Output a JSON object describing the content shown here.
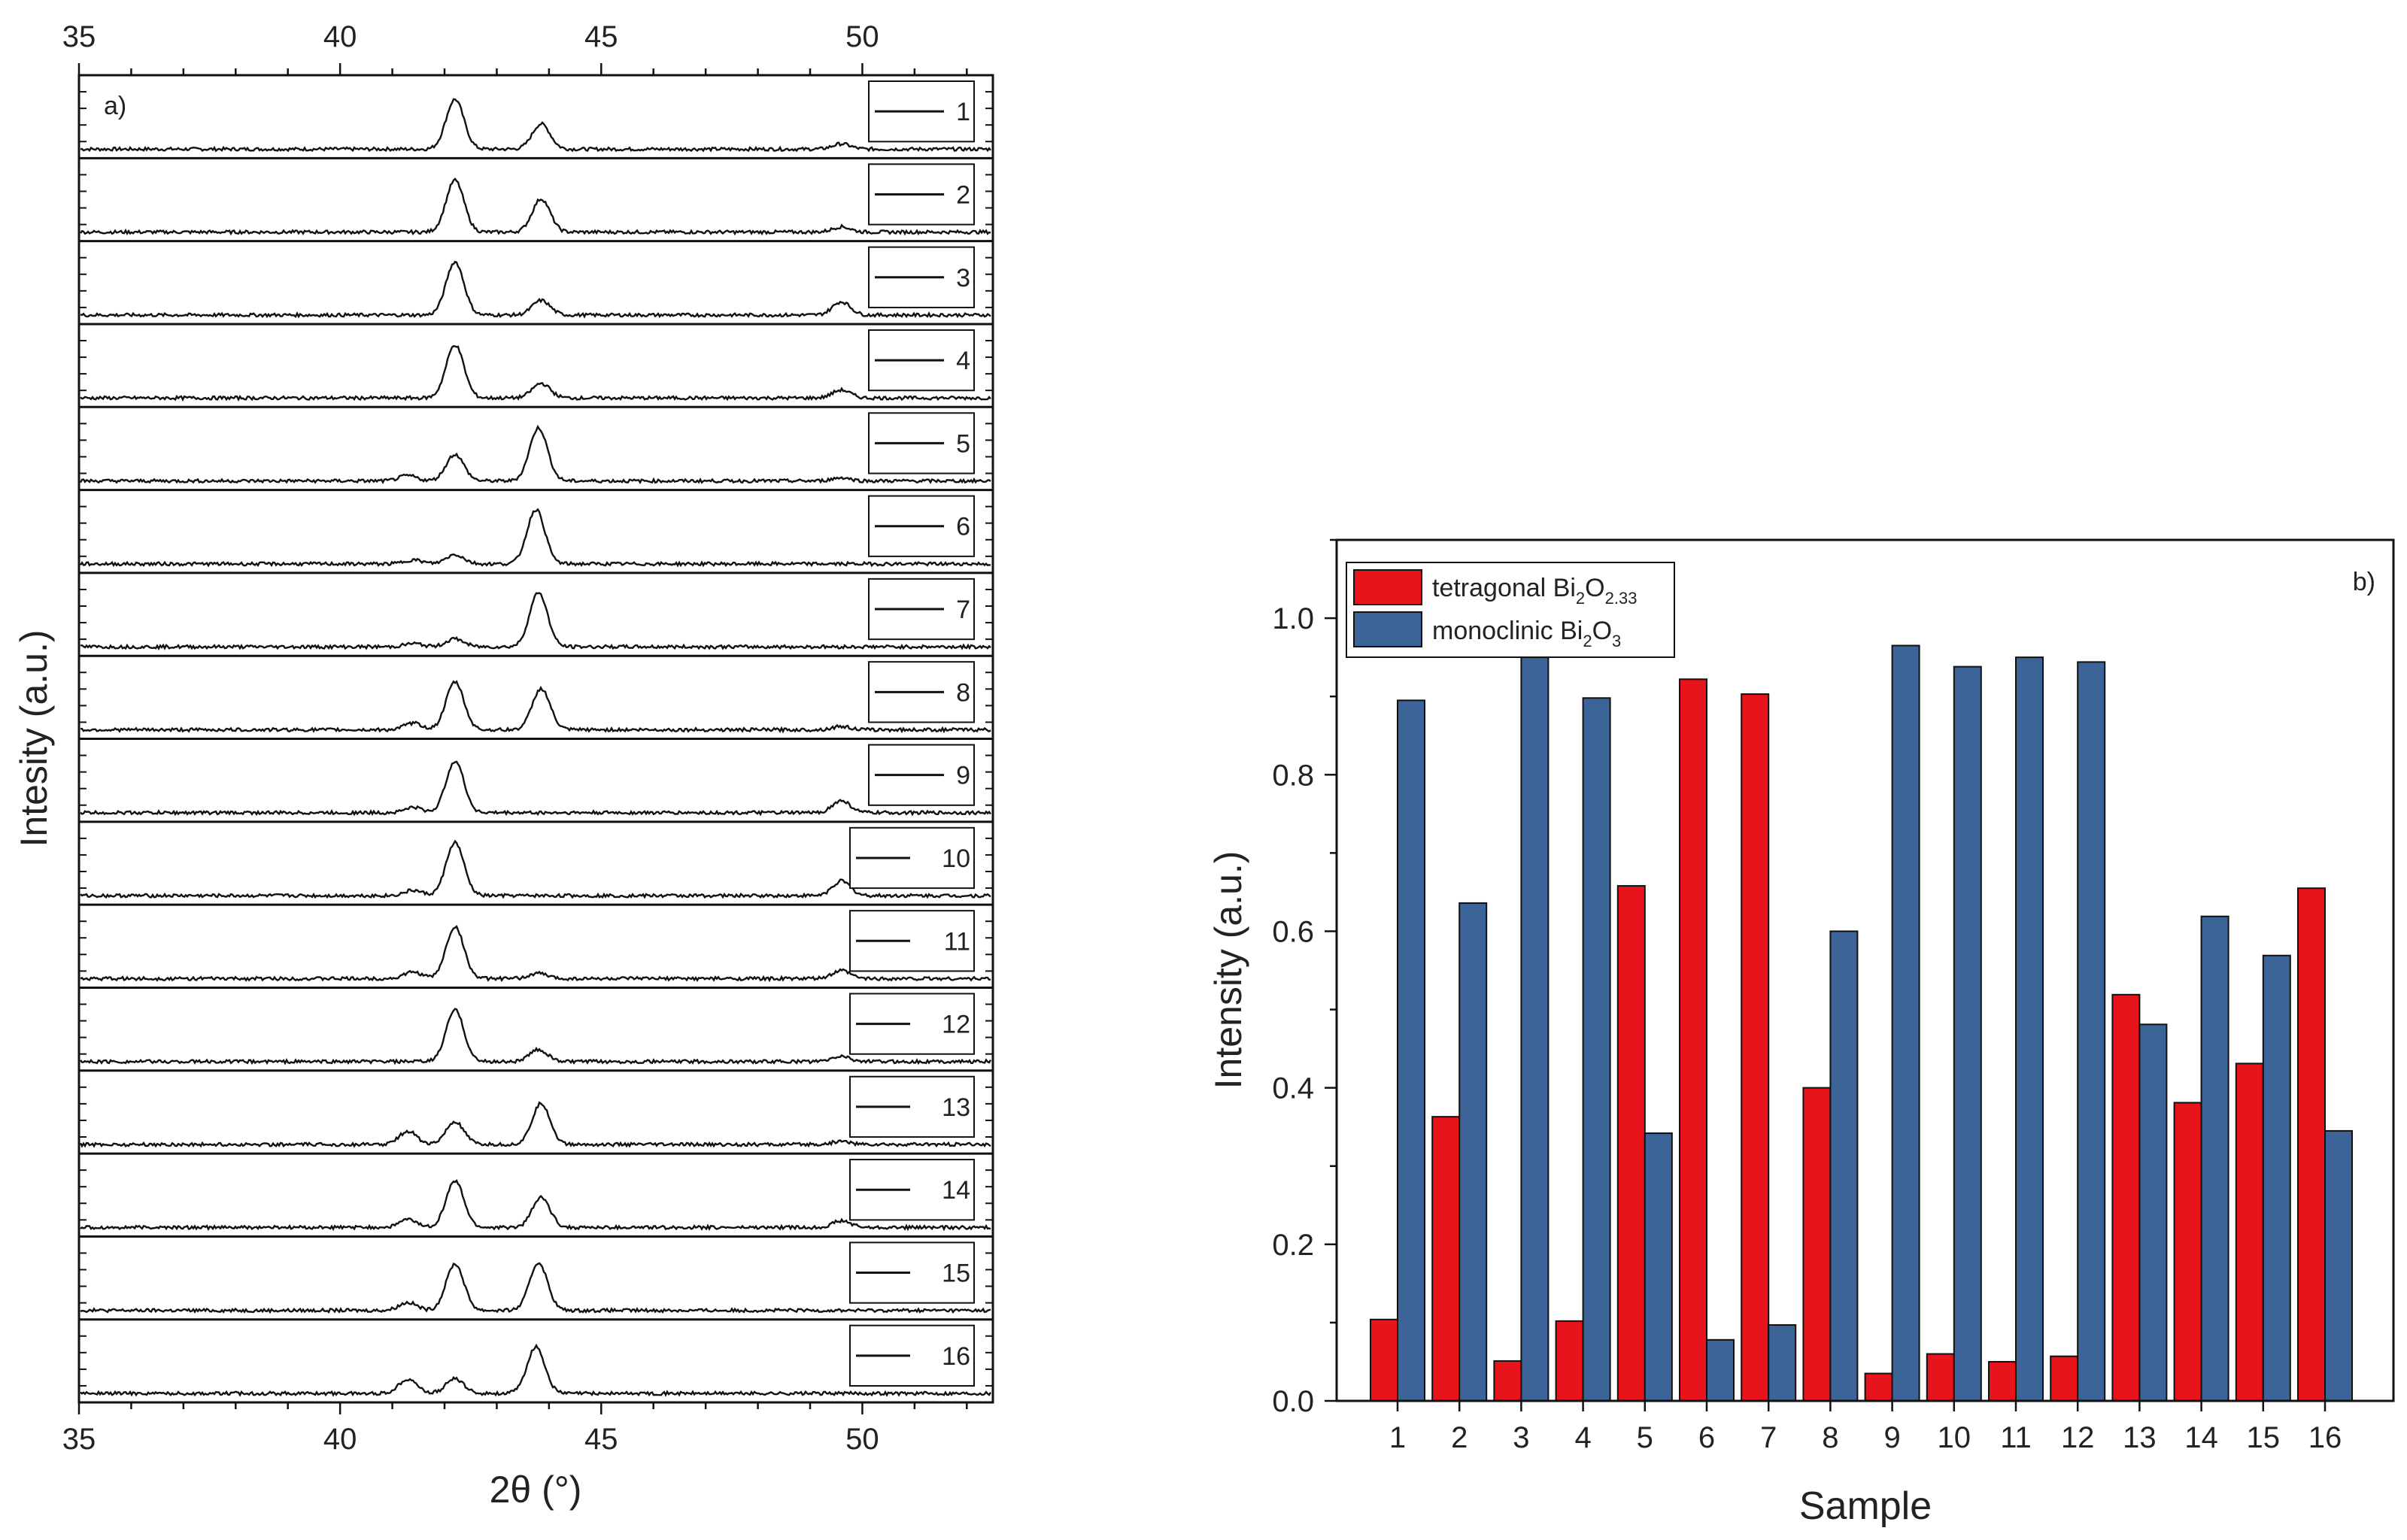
{
  "chart_data": [
    {
      "type": "line",
      "panel_label": "a)",
      "xlabel": "2θ (°)",
      "ylabel": "Intesity (a.u.)",
      "xlim": [
        35,
        52.5
      ],
      "xticks": [
        "35",
        "40",
        "45",
        "50"
      ],
      "top_xticks": [
        "35",
        "40",
        "45",
        "50"
      ],
      "y_ticks_shown": false,
      "series": [
        {
          "name": "1",
          "peaks": [
            {
              "x": 42.2,
              "h": 0.75
            },
            {
              "x": 43.85,
              "h": 0.38
            },
            {
              "x": 49.6,
              "h": 0.08
            }
          ]
        },
        {
          "name": "2",
          "peaks": [
            {
              "x": 42.2,
              "h": 0.78
            },
            {
              "x": 43.85,
              "h": 0.5
            },
            {
              "x": 49.6,
              "h": 0.08
            }
          ]
        },
        {
          "name": "3",
          "peaks": [
            {
              "x": 42.2,
              "h": 0.8
            },
            {
              "x": 43.85,
              "h": 0.22
            },
            {
              "x": 49.6,
              "h": 0.2
            }
          ]
        },
        {
          "name": "4",
          "peaks": [
            {
              "x": 42.2,
              "h": 0.8
            },
            {
              "x": 43.85,
              "h": 0.22
            },
            {
              "x": 49.6,
              "h": 0.12
            }
          ]
        },
        {
          "name": "5",
          "peaks": [
            {
              "x": 41.3,
              "h": 0.08
            },
            {
              "x": 42.2,
              "h": 0.4
            },
            {
              "x": 43.8,
              "h": 0.8
            },
            {
              "x": 49.6,
              "h": 0.05
            }
          ]
        },
        {
          "name": "6",
          "peaks": [
            {
              "x": 41.4,
              "h": 0.06
            },
            {
              "x": 42.2,
              "h": 0.14
            },
            {
              "x": 43.75,
              "h": 0.82
            }
          ]
        },
        {
          "name": "7",
          "peaks": [
            {
              "x": 41.4,
              "h": 0.05
            },
            {
              "x": 42.2,
              "h": 0.12
            },
            {
              "x": 43.8,
              "h": 0.82
            }
          ]
        },
        {
          "name": "8",
          "peaks": [
            {
              "x": 41.4,
              "h": 0.1
            },
            {
              "x": 42.2,
              "h": 0.72
            },
            {
              "x": 43.85,
              "h": 0.62
            },
            {
              "x": 49.6,
              "h": 0.05
            }
          ]
        },
        {
          "name": "9",
          "peaks": [
            {
              "x": 41.4,
              "h": 0.08
            },
            {
              "x": 42.2,
              "h": 0.78
            },
            {
              "x": 49.6,
              "h": 0.18
            }
          ]
        },
        {
          "name": "10",
          "peaks": [
            {
              "x": 41.4,
              "h": 0.08
            },
            {
              "x": 42.2,
              "h": 0.8
            },
            {
              "x": 49.6,
              "h": 0.22
            }
          ]
        },
        {
          "name": "11",
          "peaks": [
            {
              "x": 41.4,
              "h": 0.1
            },
            {
              "x": 42.2,
              "h": 0.78
            },
            {
              "x": 43.8,
              "h": 0.08
            },
            {
              "x": 49.6,
              "h": 0.12
            }
          ]
        },
        {
          "name": "12",
          "peaks": [
            {
              "x": 42.2,
              "h": 0.78
            },
            {
              "x": 43.8,
              "h": 0.18
            },
            {
              "x": 49.6,
              "h": 0.08
            }
          ]
        },
        {
          "name": "13",
          "peaks": [
            {
              "x": 41.3,
              "h": 0.2
            },
            {
              "x": 42.2,
              "h": 0.34
            },
            {
              "x": 43.85,
              "h": 0.62
            },
            {
              "x": 49.6,
              "h": 0.05
            }
          ]
        },
        {
          "name": "14",
          "peaks": [
            {
              "x": 41.3,
              "h": 0.12
            },
            {
              "x": 42.2,
              "h": 0.7
            },
            {
              "x": 43.85,
              "h": 0.45
            },
            {
              "x": 49.6,
              "h": 0.1
            }
          ]
        },
        {
          "name": "15",
          "peaks": [
            {
              "x": 41.3,
              "h": 0.12
            },
            {
              "x": 42.2,
              "h": 0.7
            },
            {
              "x": 43.8,
              "h": 0.72
            }
          ]
        },
        {
          "name": "16",
          "peaks": [
            {
              "x": 41.3,
              "h": 0.22
            },
            {
              "x": 42.2,
              "h": 0.22
            },
            {
              "x": 43.75,
              "h": 0.7
            }
          ]
        }
      ]
    },
    {
      "type": "bar",
      "panel_label": "b)",
      "xlabel": "Sample",
      "ylabel": "Intensity (a.u.)",
      "ylim": [
        0,
        1.1
      ],
      "yticks": [
        "0.0",
        "0.2",
        "0.4",
        "0.6",
        "0.8",
        "1.0"
      ],
      "legend_position": "top-left",
      "categories": [
        "1",
        "2",
        "3",
        "4",
        "5",
        "6",
        "7",
        "8",
        "9",
        "10",
        "11",
        "12",
        "13",
        "14",
        "15",
        "16"
      ],
      "series": [
        {
          "name": "tetragonal Bi2O2.33",
          "color": "#e8141b",
          "values": [
            0.104,
            0.363,
            0.051,
            0.102,
            0.658,
            0.922,
            0.903,
            0.4,
            0.035,
            0.06,
            0.05,
            0.057,
            0.519,
            0.381,
            0.431,
            0.655
          ]
        },
        {
          "name": "monoclinic Bi2O3",
          "color": "#3c6499",
          "values": [
            0.895,
            0.636,
            0.95,
            0.898,
            0.342,
            0.078,
            0.097,
            0.6,
            0.965,
            0.938,
            0.95,
            0.944,
            0.481,
            0.619,
            0.569,
            0.345
          ]
        }
      ],
      "legend": {
        "tetragonal": {
          "prefix": "tetragonal Bi",
          "sub1": "2",
          "mid": "O",
          "sub2": "2.33"
        },
        "monoclinic": {
          "prefix": "monoclinic Bi",
          "sub1": "2",
          "mid": "O",
          "sub2": "3"
        }
      }
    }
  ]
}
